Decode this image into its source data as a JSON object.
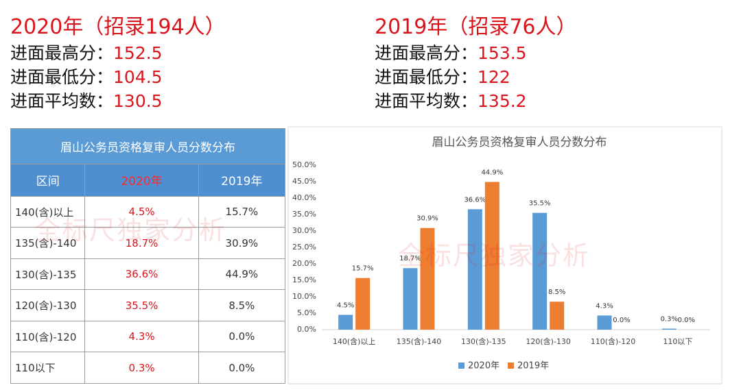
{
  "stats": [
    {
      "title": "2020年（招录194人）",
      "rows": [
        {
          "label": "进面最高分：",
          "value": "152.5"
        },
        {
          "label": "进面最低分：",
          "value": "104.5"
        },
        {
          "label": "进面平均数：",
          "value": "130.5"
        }
      ]
    },
    {
      "title": "2019年（招录76人）",
      "rows": [
        {
          "label": "进面最高分：",
          "value": "153.5"
        },
        {
          "label": "进面最低分：",
          "value": "122"
        },
        {
          "label": "进面平均数：",
          "value": "135.2"
        }
      ]
    }
  ],
  "table": {
    "title": "眉山公务员资格复审人员分数分布",
    "header": [
      "区间",
      "2020年",
      "2019年"
    ],
    "rows": [
      [
        "140(含)以上",
        "4.5%",
        "15.7%"
      ],
      [
        "135(含)-140",
        "18.7%",
        "30.9%"
      ],
      [
        "130(含)-135",
        "36.6%",
        "44.9%"
      ],
      [
        "120(含)-130",
        "35.5%",
        "8.5%"
      ],
      [
        "110(含)-120",
        "4.3%",
        "0.0%"
      ],
      [
        "110以下",
        "0.3%",
        "0.0%"
      ]
    ]
  },
  "watermark": "全标尺独家分析",
  "chart_data": {
    "type": "bar",
    "title": "眉山公务员资格复审人员分数分布",
    "categories": [
      "140(含)以上",
      "135(含)-140",
      "130(含)-135",
      "120(含)-130",
      "110(含)-120",
      "110以下"
    ],
    "series": [
      {
        "name": "2020年",
        "color": "#5b9bd5",
        "values": [
          4.5,
          18.7,
          36.6,
          35.5,
          4.3,
          0.3
        ],
        "value_labels": [
          "4.5%",
          "18.7%",
          "36.6%",
          "35.5%",
          "4.3%",
          "0.3%"
        ]
      },
      {
        "name": "2019年",
        "color": "#ed7d31",
        "values": [
          15.7,
          30.9,
          44.9,
          8.5,
          0.0,
          0.0
        ],
        "value_labels": [
          "15.7%",
          "30.9%",
          "44.9%",
          "8.5%",
          "0.0%",
          "0.0%"
        ]
      }
    ],
    "ylim": [
      0,
      50
    ],
    "yticks": [
      {
        "value": 0,
        "label": "0.0%"
      },
      {
        "value": 5,
        "label": "5.0%"
      },
      {
        "value": 10,
        "label": "10.0%"
      },
      {
        "value": 15,
        "label": "15.0%"
      },
      {
        "value": 20,
        "label": "20.0%"
      },
      {
        "value": 25,
        "label": "25.0%"
      },
      {
        "value": 30,
        "label": "30.0%"
      },
      {
        "value": 35,
        "label": "35.0%"
      },
      {
        "value": 40,
        "label": "40.0%"
      },
      {
        "value": 45,
        "label": "45.0%"
      },
      {
        "value": 50,
        "label": "50.0%"
      }
    ],
    "grid": false,
    "legend": "bottom"
  }
}
